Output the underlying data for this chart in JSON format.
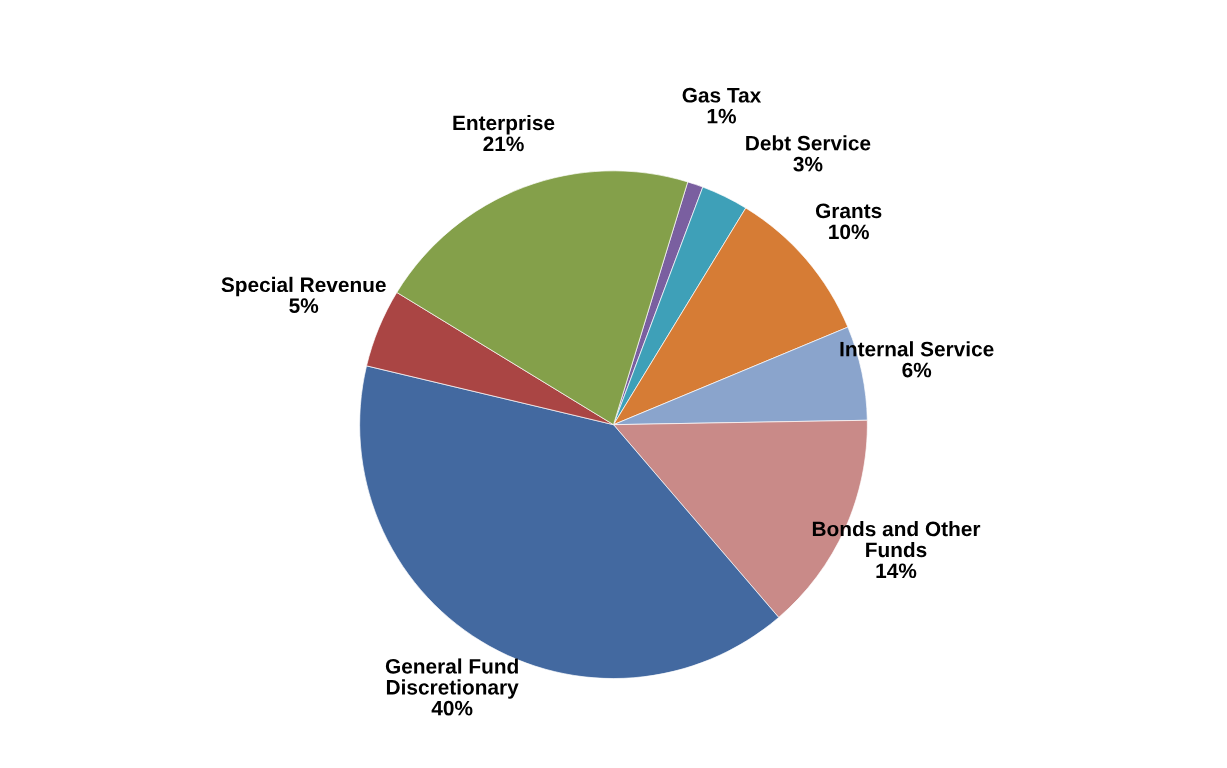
{
  "chart_data": {
    "type": "pie",
    "categories": [
      "Gas Tax",
      "Debt Service",
      "Grants",
      "Internal Service",
      "Bonds and Other\nFunds",
      "General Fund\nDiscretionary",
      "Special Revenue",
      "Enterprise"
    ],
    "values": [
      1,
      3,
      10,
      6,
      14,
      40,
      5,
      21
    ],
    "value_labels": [
      "1%",
      "3%",
      "10%",
      "6%",
      "14%",
      "40%",
      "5%",
      "21%"
    ],
    "colors": [
      "#7a5fa0",
      "#3ea0b8",
      "#d67c35",
      "#8aa4cc",
      "#c98a88",
      "#4369a0",
      "#aa4544",
      "#84a04a"
    ],
    "legend": false
  }
}
